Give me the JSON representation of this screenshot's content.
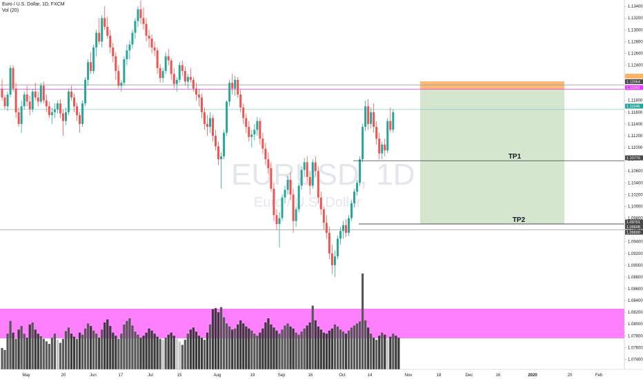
{
  "header": {
    "title": "Euro / U.S. Dollar, 1D, FXCM",
    "volume": "Vol (20)"
  },
  "watermark": {
    "symbol": "EURUSD, 1D",
    "name": "Euro / U.S. Dollar"
  },
  "colors": {
    "up": "#26a69a",
    "down": "#ef5350",
    "wick": "#26a69a"
  },
  "chart_data": {
    "type": "candlestick",
    "y_axis_ticks": [
      "1.13400",
      "1.13200",
      "1.13000",
      "1.12800",
      "1.12600",
      "1.12400",
      "1.12200",
      "1.12000",
      "1.11800",
      "1.11600",
      "1.11400",
      "1.11200",
      "1.11000",
      "1.10800",
      "1.10600",
      "1.10400",
      "1.10200",
      "1.10000",
      "1.09800",
      "1.09600",
      "1.09400",
      "1.09200",
      "1.09000",
      "1.08800",
      "1.08600",
      "1.08400",
      "1.08200",
      "1.08000",
      "1.07800",
      "1.07600",
      "1.07400"
    ],
    "ylim": [
      1.073,
      1.1346
    ],
    "x_axis_ticks": [
      "May",
      "20",
      "Jun",
      "17",
      "Jul",
      "15",
      "Aug",
      "19",
      "Sep",
      "16",
      "Oct",
      "14",
      "Nov",
      "18",
      "Dec",
      "16",
      "2020",
      "20",
      "Feb"
    ],
    "price_tags": [
      {
        "value": "1.12064",
        "price": 1.12064,
        "color": "#4a4a4a"
      },
      {
        "value": "1.11992",
        "price": 1.11992,
        "color": "#e040fb"
      },
      {
        "value": "1.11646",
        "price": 1.11646,
        "color": "#26a69a"
      },
      {
        "value": "1.10776",
        "price": 1.10776,
        "color": "#4a4a4a"
      },
      {
        "value": "1.09701",
        "price": 1.09701,
        "color": "#4a4a4a"
      },
      {
        "value": "1.09698",
        "price": 1.09698,
        "color": "#4a4a4a"
      },
      {
        "value": "1.09600",
        "price": 1.096,
        "color": "#4a4a4a"
      }
    ],
    "horizontal_lines": [
      {
        "price": 1.12064,
        "color": "#9e9e9e"
      },
      {
        "price": 1.11992,
        "color": "#e040fb"
      },
      {
        "price": 1.11646,
        "color": "#80cbc4"
      },
      {
        "price": 1.096,
        "color": "#9e9e9e"
      }
    ],
    "targets": [
      {
        "label": "TP1",
        "price": 1.10776
      },
      {
        "label": "TP2",
        "price": 1.09701
      }
    ],
    "position": {
      "entry": 1.11992,
      "stop": 1.12125,
      "target": 1.09701,
      "profit_color": "#d5e6cf",
      "loss_color": "#ffb366"
    },
    "volume_zone": {
      "color": "#ff80ff"
    },
    "ohlc": [
      [
        1.12,
        1.1216,
        1.118,
        1.1185
      ],
      [
        1.1185,
        1.119,
        1.1165,
        1.117
      ],
      [
        1.117,
        1.1195,
        1.1162,
        1.119
      ],
      [
        1.119,
        1.124,
        1.1185,
        1.1235
      ],
      [
        1.1235,
        1.124,
        1.1195,
        1.12
      ],
      [
        1.12,
        1.121,
        1.115,
        1.116
      ],
      [
        1.116,
        1.1168,
        1.1135,
        1.114
      ],
      [
        1.114,
        1.118,
        1.1125,
        1.117
      ],
      [
        1.117,
        1.1195,
        1.1165,
        1.119
      ],
      [
        1.119,
        1.1205,
        1.117,
        1.1178
      ],
      [
        1.1178,
        1.1188,
        1.1155,
        1.1165
      ],
      [
        1.1165,
        1.12,
        1.116,
        1.1195
      ],
      [
        1.1195,
        1.121,
        1.118,
        1.1185
      ],
      [
        1.1185,
        1.1195,
        1.117,
        1.1178
      ],
      [
        1.1178,
        1.121,
        1.1175,
        1.1205
      ],
      [
        1.1205,
        1.1212,
        1.1175,
        1.118
      ],
      [
        1.118,
        1.119,
        1.116,
        1.117
      ],
      [
        1.117,
        1.1178,
        1.115,
        1.1155
      ],
      [
        1.1155,
        1.1168,
        1.114,
        1.116
      ],
      [
        1.116,
        1.1175,
        1.115,
        1.1165
      ],
      [
        1.1165,
        1.118,
        1.1158,
        1.1175
      ],
      [
        1.1175,
        1.1182,
        1.115,
        1.1158
      ],
      [
        1.1158,
        1.1165,
        1.112,
        1.1145
      ],
      [
        1.1145,
        1.1168,
        1.1138,
        1.116
      ],
      [
        1.116,
        1.12,
        1.1155,
        1.1195
      ],
      [
        1.1195,
        1.1205,
        1.118,
        1.1185
      ],
      [
        1.1185,
        1.1192,
        1.116,
        1.117
      ],
      [
        1.117,
        1.1176,
        1.1145,
        1.1155
      ],
      [
        1.1155,
        1.116,
        1.1125,
        1.114
      ],
      [
        1.114,
        1.118,
        1.1135,
        1.1175
      ],
      [
        1.1175,
        1.122,
        1.117,
        1.1215
      ],
      [
        1.1215,
        1.125,
        1.1205,
        1.1245
      ],
      [
        1.1245,
        1.1262,
        1.1225,
        1.123
      ],
      [
        1.123,
        1.1275,
        1.1225,
        1.127
      ],
      [
        1.127,
        1.13,
        1.1255,
        1.1295
      ],
      [
        1.1295,
        1.132,
        1.1275,
        1.128
      ],
      [
        1.128,
        1.1325,
        1.127,
        1.132
      ],
      [
        1.132,
        1.134,
        1.13,
        1.1305
      ],
      [
        1.1305,
        1.1322,
        1.1285,
        1.129
      ],
      [
        1.129,
        1.13,
        1.126,
        1.127
      ],
      [
        1.127,
        1.1278,
        1.1245,
        1.1255
      ],
      [
        1.1255,
        1.1262,
        1.1215,
        1.123
      ],
      [
        1.123,
        1.124,
        1.12,
        1.1205
      ],
      [
        1.1205,
        1.1215,
        1.1195,
        1.121
      ],
      [
        1.121,
        1.1255,
        1.1205,
        1.125
      ],
      [
        1.125,
        1.1275,
        1.124,
        1.1265
      ],
      [
        1.1265,
        1.1282,
        1.125,
        1.1275
      ],
      [
        1.1275,
        1.13,
        1.1268,
        1.1295
      ],
      [
        1.1295,
        1.132,
        1.1285,
        1.1315
      ],
      [
        1.1315,
        1.134,
        1.1305,
        1.1335
      ],
      [
        1.1335,
        1.135,
        1.131,
        1.132
      ],
      [
        1.132,
        1.1338,
        1.13,
        1.131
      ],
      [
        1.131,
        1.132,
        1.128,
        1.129
      ],
      [
        1.129,
        1.13,
        1.127,
        1.1285
      ],
      [
        1.1285,
        1.1292,
        1.126,
        1.127
      ],
      [
        1.127,
        1.128,
        1.1255,
        1.1265
      ],
      [
        1.1265,
        1.127,
        1.1225,
        1.1235
      ],
      [
        1.1235,
        1.1242,
        1.121,
        1.1218
      ],
      [
        1.1218,
        1.1235,
        1.121,
        1.123
      ],
      [
        1.123,
        1.1262,
        1.1225,
        1.1255
      ],
      [
        1.1255,
        1.1268,
        1.124,
        1.1248
      ],
      [
        1.1248,
        1.1252,
        1.1215,
        1.1225
      ],
      [
        1.1225,
        1.1235,
        1.12,
        1.1208
      ],
      [
        1.1208,
        1.122,
        1.1195,
        1.1215
      ],
      [
        1.1215,
        1.1245,
        1.121,
        1.124
      ],
      [
        1.124,
        1.1248,
        1.1222,
        1.123
      ],
      [
        1.123,
        1.1238,
        1.1205,
        1.1212
      ],
      [
        1.1212,
        1.1225,
        1.12,
        1.122
      ],
      [
        1.122,
        1.1235,
        1.121,
        1.1215
      ],
      [
        1.1215,
        1.122,
        1.1195,
        1.12
      ],
      [
        1.12,
        1.121,
        1.118,
        1.119
      ],
      [
        1.119,
        1.12,
        1.117,
        1.1185
      ],
      [
        1.1185,
        1.1192,
        1.115,
        1.116
      ],
      [
        1.116,
        1.1168,
        1.113,
        1.114
      ],
      [
        1.114,
        1.1155,
        1.112,
        1.1135
      ],
      [
        1.1135,
        1.116,
        1.1125,
        1.115
      ],
      [
        1.115,
        1.1155,
        1.111,
        1.112
      ],
      [
        1.112,
        1.113,
        1.1095,
        1.1102
      ],
      [
        1.1102,
        1.111,
        1.107,
        1.108
      ],
      [
        1.108,
        1.1092,
        1.103,
        1.1085
      ],
      [
        1.1085,
        1.113,
        1.108,
        1.1125
      ],
      [
        1.1125,
        1.118,
        1.112,
        1.1178
      ],
      [
        1.1178,
        1.1215,
        1.117,
        1.121
      ],
      [
        1.121,
        1.1225,
        1.119,
        1.12
      ],
      [
        1.12,
        1.1222,
        1.1188,
        1.1215
      ],
      [
        1.1215,
        1.122,
        1.1185,
        1.119
      ],
      [
        1.119,
        1.1198,
        1.116,
        1.1168
      ],
      [
        1.1168,
        1.1175,
        1.114,
        1.115
      ],
      [
        1.115,
        1.1158,
        1.1125,
        1.1135
      ],
      [
        1.1135,
        1.1145,
        1.111,
        1.1118
      ],
      [
        1.1118,
        1.113,
        1.11,
        1.1122
      ],
      [
        1.1122,
        1.114,
        1.1112,
        1.113
      ],
      [
        1.113,
        1.1152,
        1.112,
        1.1145
      ],
      [
        1.1145,
        1.115,
        1.1105,
        1.1115
      ],
      [
        1.1115,
        1.1125,
        1.109,
        1.1098
      ],
      [
        1.1098,
        1.1108,
        1.107,
        1.108
      ],
      [
        1.108,
        1.1092,
        1.1055,
        1.1065
      ],
      [
        1.1065,
        1.1075,
        1.1025,
        1.103
      ],
      [
        1.103,
        1.104,
        1.0975,
        1.0985
      ],
      [
        1.0985,
        1.0995,
        1.096,
        1.097
      ],
      [
        1.097,
        1.099,
        1.093,
        1.098
      ],
      [
        1.098,
        1.102,
        1.0975,
        1.1015
      ],
      [
        1.1015,
        1.1035,
        1.1005,
        1.1028
      ],
      [
        1.1028,
        1.1052,
        1.102,
        1.1045
      ],
      [
        1.1045,
        1.1058,
        1.101,
        1.102
      ],
      [
        1.102,
        1.103,
        1.0955,
        1.0975
      ],
      [
        1.0975,
        1.1,
        1.0965,
        1.0995
      ],
      [
        1.0995,
        1.104,
        1.099,
        1.1035
      ],
      [
        1.1035,
        1.1068,
        1.1028,
        1.1062
      ],
      [
        1.1062,
        1.1082,
        1.105,
        1.1075
      ],
      [
        1.1075,
        1.1085,
        1.104,
        1.105
      ],
      [
        1.105,
        1.106,
        1.102,
        1.1035
      ],
      [
        1.1035,
        1.108,
        1.103,
        1.1075
      ],
      [
        1.1075,
        1.1085,
        1.105,
        1.106
      ],
      [
        1.106,
        1.1068,
        1.1005,
        1.1015
      ],
      [
        1.1015,
        1.1025,
        1.0985,
        1.0995
      ],
      [
        1.0995,
        1.1,
        1.096,
        1.0972
      ],
      [
        1.0972,
        1.0985,
        1.0945,
        1.0955
      ],
      [
        1.0955,
        1.0965,
        1.091,
        1.092
      ],
      [
        1.092,
        1.0935,
        1.0885,
        1.09
      ],
      [
        1.09,
        1.0925,
        1.088,
        1.0915
      ],
      [
        1.0915,
        1.095,
        1.091,
        1.0945
      ],
      [
        1.0945,
        1.0965,
        1.0935,
        1.0958
      ],
      [
        1.0958,
        1.0975,
        1.0945,
        1.0968
      ],
      [
        1.0968,
        1.0978,
        1.0948,
        1.0955
      ],
      [
        1.0955,
        1.0985,
        1.095,
        1.098
      ],
      [
        1.098,
        1.101,
        1.0975,
        1.1005
      ],
      [
        1.1005,
        1.103,
        1.0998,
        1.1025
      ],
      [
        1.1025,
        1.1045,
        1.1018,
        1.104
      ],
      [
        1.104,
        1.1085,
        1.1035,
        1.108
      ],
      [
        1.108,
        1.114,
        1.1075,
        1.1135
      ],
      [
        1.1135,
        1.118,
        1.1128,
        1.117
      ],
      [
        1.117,
        1.1182,
        1.113,
        1.114
      ],
      [
        1.114,
        1.1168,
        1.1132,
        1.116
      ],
      [
        1.116,
        1.1175,
        1.1125,
        1.1135
      ],
      [
        1.1135,
        1.1145,
        1.1105,
        1.1115
      ],
      [
        1.1115,
        1.1125,
        1.108,
        1.109
      ],
      [
        1.109,
        1.111,
        1.108,
        1.1105
      ],
      [
        1.1105,
        1.1115,
        1.1085,
        1.1095
      ],
      [
        1.1095,
        1.115,
        1.109,
        1.1145
      ],
      [
        1.1145,
        1.1168,
        1.1125,
        1.113
      ],
      [
        1.113,
        1.1165,
        1.1125,
        1.116
      ]
    ],
    "volume": [
      0.42,
      0.38,
      0.7,
      0.95,
      0.72,
      0.6,
      0.78,
      0.85,
      0.7,
      0.62,
      0.88,
      0.92,
      0.78,
      0.7,
      0.65,
      0.6,
      0.55,
      0.5,
      0.62,
      0.7,
      0.58,
      0.52,
      0.6,
      0.75,
      0.82,
      0.7,
      0.64,
      0.6,
      0.72,
      0.68,
      0.8,
      0.9,
      0.85,
      0.76,
      0.7,
      0.62,
      0.78,
      0.92,
      0.98,
      0.85,
      0.72,
      0.66,
      0.6,
      0.7,
      0.88,
      0.95,
      1.0,
      0.86,
      0.74,
      0.68,
      0.62,
      0.66,
      0.72,
      0.8,
      0.76,
      0.7,
      0.64,
      0.6,
      0.58,
      0.62,
      0.68,
      0.72,
      0.66,
      0.6,
      0.55,
      0.48,
      0.58,
      0.7,
      0.78,
      0.82,
      0.74,
      0.66,
      0.62,
      0.58,
      0.72,
      0.88,
      1.18,
      1.2,
      1.12,
      1.22,
      1.02,
      0.9,
      0.84,
      0.78,
      0.8,
      0.88,
      0.96,
      0.9,
      0.84,
      0.8,
      0.76,
      0.7,
      0.66,
      0.72,
      0.8,
      0.92,
      1.0,
      0.88,
      0.82,
      0.76,
      0.7,
      0.78,
      0.86,
      0.9,
      0.84,
      0.8,
      0.72,
      0.68,
      0.74,
      0.8,
      0.86,
      0.92,
      1.25,
      0.96,
      0.84,
      0.78,
      0.72,
      0.7,
      0.76,
      0.8,
      0.88,
      0.84,
      0.78,
      0.74,
      0.7,
      0.76,
      0.82,
      0.86,
      0.9,
      0.94,
      1.88,
      0.96,
      0.82,
      0.7,
      0.62,
      0.58,
      0.66,
      0.72,
      0.68,
      0.6,
      0.64,
      0.7,
      0.66,
      0.62
    ]
  }
}
